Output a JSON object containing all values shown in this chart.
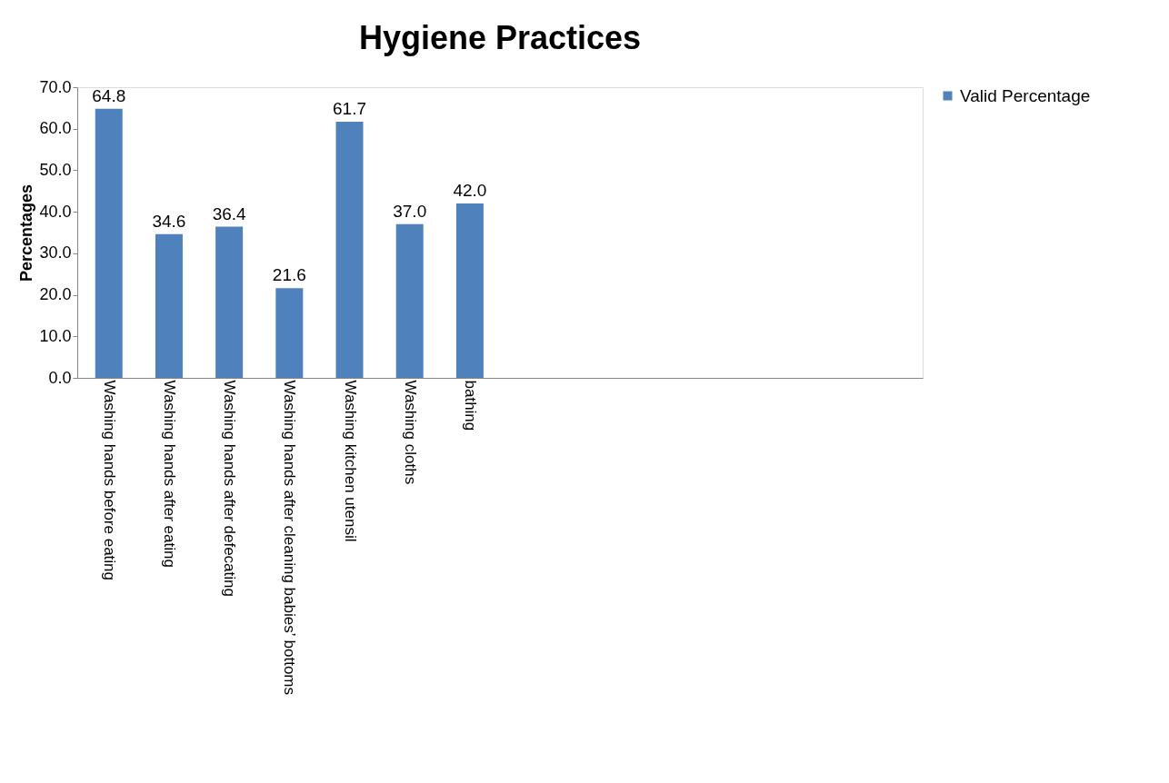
{
  "chart_data": {
    "type": "bar",
    "title": "Hygiene Practices",
    "ylabel": "Percentages",
    "categories": [
      "Washing hands before eating",
      "Washing hands after eating",
      "Washing hands after defecating",
      "Washing hands after cleaning babies’ bottoms",
      "Washing kitchen utensil",
      "Washing cloths",
      "bathing",
      null,
      null,
      null,
      null,
      null,
      null,
      null
    ],
    "series": [
      {
        "name": "Valid Percentage",
        "color": "#4f81bd",
        "values": [
          64.8,
          34.6,
          36.4,
          21.6,
          61.7,
          37.0,
          42.0,
          null,
          null,
          null,
          null,
          null,
          null,
          null
        ],
        "value_labels": [
          "64.8",
          "34.6",
          "36.4",
          "21.6",
          "61.7",
          "37.0",
          "42.0",
          null,
          null,
          null,
          null,
          null,
          null,
          null
        ]
      }
    ],
    "ylim": [
      0,
      70
    ],
    "yticks": [
      {
        "value": 0,
        "label": "0.0"
      },
      {
        "value": 10,
        "label": "10.0"
      },
      {
        "value": 20,
        "label": "20.0"
      },
      {
        "value": 30,
        "label": "30.0"
      },
      {
        "value": 40,
        "label": "40.0"
      },
      {
        "value": 50,
        "label": "50.0"
      },
      {
        "value": 60,
        "label": "60.0"
      },
      {
        "value": 70,
        "label": "70.0"
      }
    ],
    "grid": false,
    "legend": "right"
  }
}
